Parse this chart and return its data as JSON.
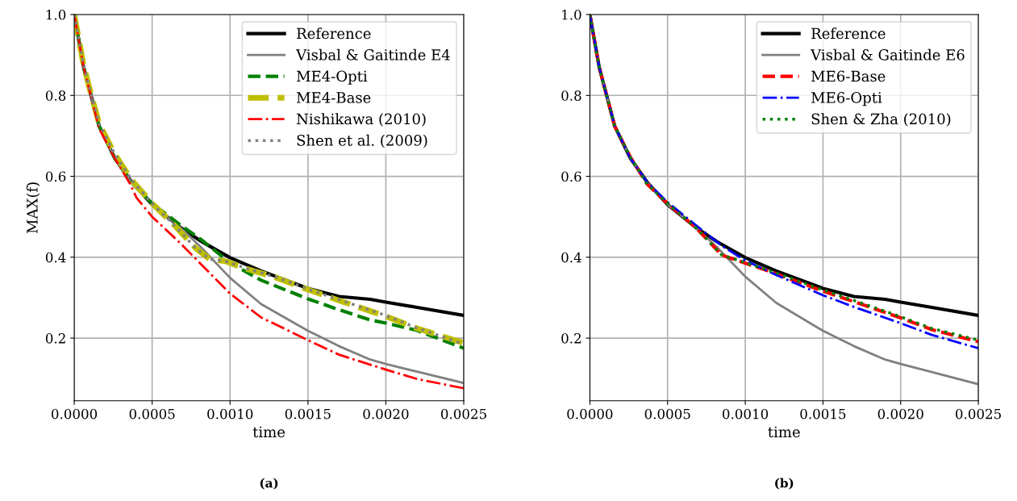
{
  "chart_data": [
    {
      "type": "line",
      "xlabel": "time",
      "ylabel": "MAX(f)",
      "annotations": [
        "(a)"
      ],
      "legend": "top right",
      "grid": true,
      "xlim": [
        0,
        0.0025
      ],
      "xticks": [
        {
          "value": 0,
          "label": "0.0000"
        },
        {
          "value": 0.0005,
          "label": "0.0005"
        },
        {
          "value": 0.001,
          "label": "0.0010"
        },
        {
          "value": 0.0015,
          "label": "0.0015"
        },
        {
          "value": 0.002,
          "label": "0.0020"
        },
        {
          "value": 0.0025,
          "label": "0.0025"
        }
      ],
      "ylim": [
        0.045,
        1.0
      ],
      "yticks": [
        0.2,
        0.4,
        0.6,
        0.8,
        {
          "value": 1.0,
          "label": "1.0"
        }
      ],
      "series": [
        {
          "name": "Reference",
          "color": "#000000",
          "line_style": "solid",
          "x": [
            0,
            6e-05,
            0.00016,
            0.00026,
            0.00037,
            0.0005,
            0.00068,
            0.00082,
            0.001,
            0.0012,
            0.0015,
            0.0017,
            0.0019,
            0.002,
            0.0022,
            0.0025
          ],
          "values": [
            1.0,
            0.87,
            0.724,
            0.645,
            0.585,
            0.53,
            0.474,
            0.438,
            0.399,
            0.366,
            0.323,
            0.303,
            0.296,
            0.289,
            0.276,
            0.256
          ]
        },
        {
          "name": "Visbal & Gaitinde E4",
          "color": "#808080",
          "line_style": "solid",
          "x": [
            0,
            6e-05,
            0.00016,
            0.00026,
            0.00037,
            0.0005,
            0.00068,
            0.00082,
            0.001,
            0.0012,
            0.0015,
            0.0017,
            0.0019,
            0.002,
            0.0022,
            0.0025
          ],
          "values": [
            1.0,
            0.87,
            0.724,
            0.645,
            0.585,
            0.53,
            0.474,
            0.422,
            0.349,
            0.284,
            0.218,
            0.18,
            0.147,
            0.136,
            0.117,
            0.089
          ]
        },
        {
          "name": "ME4-Opti",
          "color": "#008000",
          "line_style": "dashed",
          "x": [
            0,
            6e-05,
            0.00016,
            0.00026,
            0.00037,
            0.0005,
            0.00068,
            0.00082,
            0.001,
            0.0012,
            0.0015,
            0.0017,
            0.0019,
            0.002,
            0.0022,
            0.0025
          ],
          "values": [
            1.0,
            0.87,
            0.724,
            0.645,
            0.585,
            0.533,
            0.48,
            0.442,
            0.386,
            0.343,
            0.297,
            0.27,
            0.245,
            0.237,
            0.219,
            0.175
          ]
        },
        {
          "name": "ME4-Base",
          "color": "#bfbf00",
          "line_style": "dashed",
          "x": [
            0,
            6e-05,
            0.00011,
            0.00016,
            0.00026,
            0.00037,
            0.0005,
            0.00064,
            0.00078,
            0.00087,
            0.00097,
            0.0011,
            0.0013,
            0.0015,
            0.0017,
            0.002,
            0.0022,
            0.0025
          ],
          "values": [
            1.0,
            0.875,
            0.8,
            0.73,
            0.655,
            0.59,
            0.533,
            0.48,
            0.422,
            0.395,
            0.39,
            0.372,
            0.349,
            0.32,
            0.293,
            0.254,
            0.224,
            0.188
          ]
        },
        {
          "name": "Nishikawa (2010)",
          "color": "#ff0000",
          "line_style": "dash-dot",
          "x": [
            0,
            6e-05,
            0.00016,
            0.00026,
            0.00036,
            0.0004,
            0.0005,
            0.00068,
            0.001,
            0.0012,
            0.0015,
            0.0017,
            0.002,
            0.0022,
            0.0025
          ],
          "values": [
            1.0,
            0.87,
            0.718,
            0.645,
            0.58,
            0.547,
            0.5,
            0.435,
            0.31,
            0.251,
            0.195,
            0.159,
            0.122,
            0.099,
            0.076
          ]
        },
        {
          "name": "Shen et al. (2009)",
          "color": "#808080",
          "line_style": "dotted",
          "x": [
            0,
            6e-05,
            0.00011,
            0.00016,
            0.00026,
            0.00037,
            0.0005,
            0.00064,
            0.00078,
            0.00087,
            0.00097,
            0.0011,
            0.0013,
            0.0015,
            0.0017,
            0.002,
            0.0022,
            0.0025
          ],
          "values": [
            1.0,
            0.875,
            0.8,
            0.73,
            0.655,
            0.59,
            0.533,
            0.48,
            0.422,
            0.395,
            0.39,
            0.373,
            0.35,
            0.321,
            0.295,
            0.256,
            0.225,
            0.185
          ]
        }
      ]
    },
    {
      "type": "line",
      "xlabel": "time",
      "annotations": [
        "(b)"
      ],
      "legend": "top right",
      "grid": true,
      "xlim": [
        0,
        0.0025
      ],
      "xticks": [
        {
          "value": 0,
          "label": "0.0000"
        },
        {
          "value": 0.0005,
          "label": "0.0005"
        },
        {
          "value": 0.001,
          "label": "0.0010"
        },
        {
          "value": 0.0015,
          "label": "0.0015"
        },
        {
          "value": 0.002,
          "label": "0.0020"
        },
        {
          "value": 0.0025,
          "label": "0.0025"
        }
      ],
      "ylim": [
        0.045,
        1.0
      ],
      "yticks": [
        0.2,
        0.4,
        0.6,
        0.8,
        {
          "value": 1.0,
          "label": "1.0"
        }
      ],
      "series": [
        {
          "name": "Reference",
          "color": "#000000",
          "line_style": "solid",
          "x": [
            0,
            6e-05,
            0.00016,
            0.00026,
            0.00037,
            0.0005,
            0.00068,
            0.00082,
            0.001,
            0.0012,
            0.0015,
            0.0017,
            0.0019,
            0.002,
            0.0022,
            0.0025
          ],
          "values": [
            1.0,
            0.87,
            0.724,
            0.645,
            0.585,
            0.53,
            0.474,
            0.438,
            0.399,
            0.366,
            0.323,
            0.303,
            0.296,
            0.289,
            0.276,
            0.256
          ]
        },
        {
          "name": "Visbal & Gaitinde E6",
          "color": "#808080",
          "line_style": "solid",
          "x": [
            0,
            6e-05,
            0.00016,
            0.00026,
            0.00037,
            0.0005,
            0.00068,
            0.00082,
            0.001,
            0.0012,
            0.0015,
            0.0017,
            0.0019,
            0.002,
            0.0022,
            0.0025
          ],
          "values": [
            1.0,
            0.87,
            0.724,
            0.645,
            0.585,
            0.53,
            0.474,
            0.424,
            0.352,
            0.287,
            0.218,
            0.18,
            0.147,
            0.136,
            0.116,
            0.086
          ]
        },
        {
          "name": "ME6-Base",
          "color": "#ff0000",
          "line_style": "dashed",
          "x": [
            0,
            6e-05,
            0.00016,
            0.00026,
            0.00037,
            0.0005,
            0.00068,
            0.00085,
            0.00095,
            0.0012,
            0.0015,
            0.0017,
            0.002,
            0.0022,
            0.0025
          ],
          "values": [
            1.0,
            0.87,
            0.724,
            0.648,
            0.58,
            0.533,
            0.474,
            0.405,
            0.392,
            0.359,
            0.316,
            0.29,
            0.25,
            0.221,
            0.191
          ]
        },
        {
          "name": "ME6-Opti",
          "color": "#0000ff",
          "line_style": "dash-dot",
          "x": [
            0,
            6e-05,
            0.00016,
            0.00026,
            0.00037,
            0.0005,
            0.00068,
            0.00085,
            0.001,
            0.0012,
            0.0015,
            0.0017,
            0.002,
            0.0022,
            0.0025
          ],
          "values": [
            1.0,
            0.87,
            0.724,
            0.645,
            0.585,
            0.536,
            0.48,
            0.428,
            0.392,
            0.356,
            0.306,
            0.277,
            0.237,
            0.208,
            0.175
          ]
        },
        {
          "name": "Shen & Zha (2010)",
          "color": "#008000",
          "line_style": "dotted",
          "x": [
            0,
            6e-05,
            0.00016,
            0.00026,
            0.00037,
            0.0005,
            0.00068,
            0.00085,
            0.00095,
            0.0012,
            0.0015,
            0.0017,
            0.002,
            0.0022,
            0.0025
          ],
          "values": [
            1.0,
            0.87,
            0.724,
            0.648,
            0.58,
            0.533,
            0.474,
            0.405,
            0.393,
            0.361,
            0.319,
            0.293,
            0.253,
            0.224,
            0.195
          ]
        }
      ]
    }
  ]
}
